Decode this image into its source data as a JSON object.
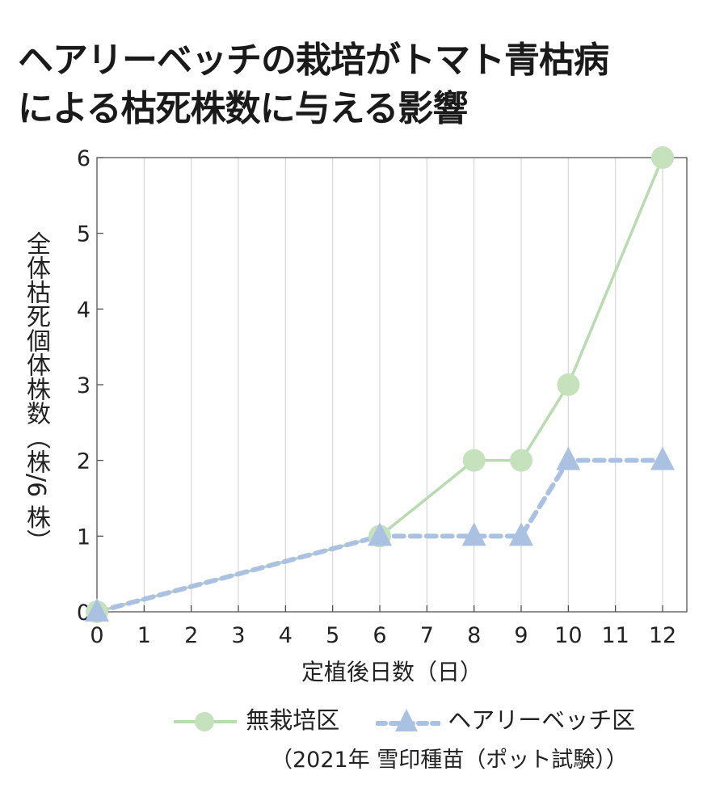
{
  "chart_data": {
    "type": "line",
    "title_line1": "ヘアリーベッチの栽培がトマト青枯病",
    "title_line2": "による枯死株数に与える影響",
    "xlabel": "定植後日数（日）",
    "ylabel": "全体枯死個体株数（株/6 株）",
    "x_ticks": [
      0,
      1,
      2,
      3,
      4,
      5,
      6,
      7,
      8,
      9,
      10,
      11,
      12
    ],
    "y_ticks": [
      0,
      1,
      2,
      3,
      4,
      5,
      6
    ],
    "xlim": [
      0,
      12.5
    ],
    "ylim": [
      0,
      6
    ],
    "grid": "vertical",
    "legend_position": "bottom",
    "series": [
      {
        "name": "無栽培区",
        "color": "#b8dbb0",
        "marker": "circle",
        "dash": "solid",
        "x": [
          0,
          6,
          8,
          9,
          10,
          12
        ],
        "y": [
          0,
          1,
          2,
          2,
          3,
          6
        ]
      },
      {
        "name": "ヘアリーベッチ区",
        "color": "#abc1e2",
        "marker": "triangle",
        "dash": "dashed",
        "x": [
          0,
          6,
          8,
          9,
          10,
          12
        ],
        "y": [
          0,
          1,
          1,
          1,
          2,
          2
        ]
      }
    ],
    "note": "（2021年  雪印種苗（ポット試験））"
  }
}
